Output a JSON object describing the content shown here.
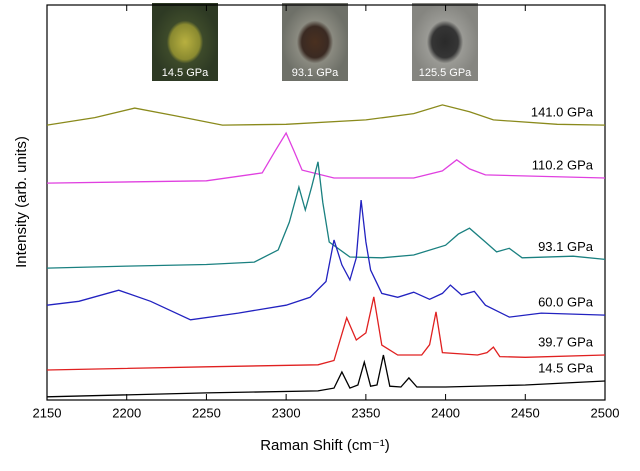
{
  "chart_data": {
    "type": "line",
    "xlabel": "Raman Shift (cm⁻¹)",
    "ylabel": "Intensity (arb. units)",
    "xlim": [
      2150,
      2500
    ],
    "xticks": [
      2150,
      2200,
      2250,
      2300,
      2350,
      2400,
      2450,
      2500
    ],
    "ylim": [
      0,
      100
    ],
    "insets": [
      "14.5 GPa",
      "93.1 GPa",
      "125.5 GPa"
    ],
    "series": [
      {
        "name": "141.0 GPa",
        "color": "#8a8a1c",
        "x": [
          2150,
          2180,
          2205,
          2230,
          2260,
          2300,
          2350,
          2380,
          2398,
          2415,
          2430,
          2470,
          2500
        ],
        "values": [
          69.6,
          71.5,
          73.9,
          72,
          69.6,
          69.8,
          70.9,
          72.5,
          74.7,
          73,
          70.9,
          69.8,
          69.6
        ]
      },
      {
        "name": "110.2 GPa",
        "color": "#e040e0",
        "x": [
          2150,
          2250,
          2285,
          2293,
          2300,
          2305,
          2310,
          2330,
          2380,
          2398,
          2407,
          2415,
          2425,
          2500
        ],
        "values": [
          54.9,
          55.5,
          57.5,
          63,
          67.6,
          63,
          58.2,
          56.2,
          56.2,
          58,
          60.8,
          58.5,
          57,
          56.2
        ]
      },
      {
        "name": "93.1 GPa",
        "color": "#1a8080",
        "x": [
          2150,
          2200,
          2250,
          2280,
          2295,
          2302,
          2308,
          2312,
          2316,
          2320,
          2323,
          2327,
          2340,
          2360,
          2380,
          2400,
          2408,
          2415,
          2425,
          2432,
          2440,
          2448,
          2480,
          2500
        ],
        "values": [
          33.4,
          33.9,
          34.3,
          34.9,
          38,
          45,
          53.9,
          48.1,
          54,
          60.3,
          50,
          40,
          36.2,
          36,
          36.7,
          39.2,
          42,
          43.5,
          40,
          37.5,
          38.4,
          36,
          36.4,
          35.6
        ]
      },
      {
        "name": "60.0 GPa",
        "color": "#2222c0",
        "x": [
          2150,
          2170,
          2195,
          2215,
          2240,
          2270,
          2300,
          2315,
          2325,
          2330,
          2335,
          2340,
          2344,
          2347,
          2350,
          2353,
          2360,
          2370,
          2380,
          2390,
          2398,
          2403,
          2410,
          2418,
          2425,
          2440,
          2460,
          2500
        ],
        "values": [
          24,
          25,
          27.8,
          25,
          20.3,
          22,
          24,
          26,
          30,
          40.5,
          34.2,
          30.4,
          36,
          50.6,
          40,
          32.9,
          27,
          26,
          27.3,
          25.5,
          27,
          29.1,
          26.6,
          27.5,
          24,
          21,
          22,
          21.5
        ]
      },
      {
        "name": "39.7 GPa",
        "color": "#e02020",
        "x": [
          2150,
          2250,
          2320,
          2330,
          2338,
          2344,
          2350,
          2355,
          2360,
          2370,
          2385,
          2390,
          2394,
          2398,
          2420,
          2426,
          2430,
          2434,
          2450,
          2500
        ],
        "values": [
          7.6,
          8.4,
          8.9,
          10,
          20.8,
          15.2,
          17,
          26.1,
          13.9,
          11.4,
          11.4,
          14,
          22.3,
          12,
          11.4,
          12,
          13.4,
          11,
          10.8,
          11.4
        ]
      },
      {
        "name": "14.5 GPa",
        "color": "#000000",
        "x": [
          2150,
          2250,
          2320,
          2330,
          2335,
          2340,
          2345,
          2349,
          2353,
          2357,
          2361,
          2365,
          2372,
          2377,
          2382,
          2400,
          2450,
          2500
        ],
        "values": [
          0.8,
          1.8,
          2.3,
          3.0,
          7.1,
          3.0,
          3.8,
          9.6,
          3.5,
          3.8,
          11.4,
          3.5,
          3.3,
          5.6,
          3.3,
          3.3,
          3.8,
          4.8
        ]
      }
    ]
  }
}
